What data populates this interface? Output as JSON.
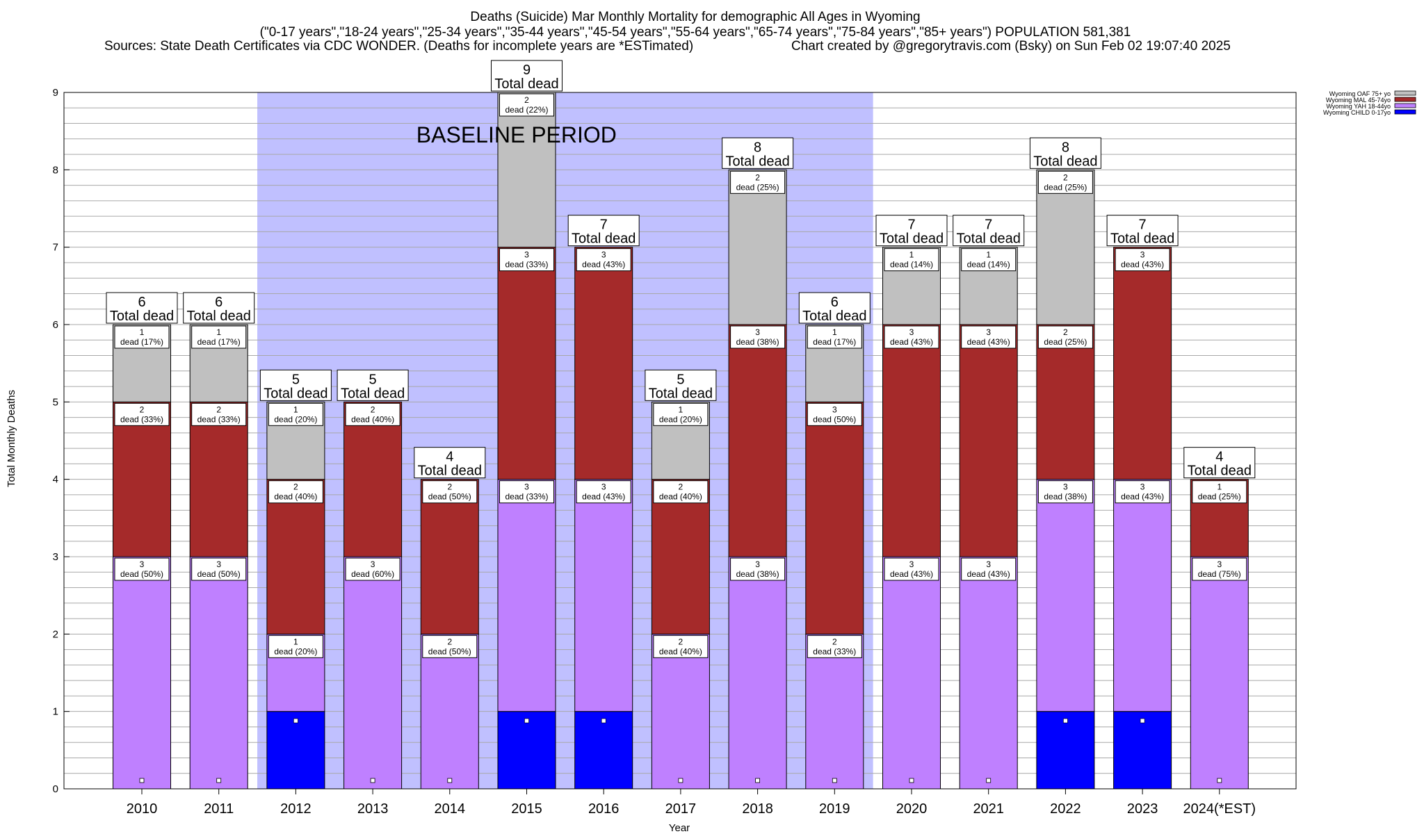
{
  "chart_data": {
    "type": "bar",
    "title": "Deaths (Suicide) Mar Monthly Mortality for demographic All Ages in Wyoming",
    "subtitle": "(\"0-17 years\",\"18-24 years\",\"25-34 years\",\"35-44 years\",\"45-54 years\",\"55-64 years\",\"65-74 years\",\"75-84 years\",\"85+ years\") POPULATION 581,381",
    "source": "Sources: State Death Certificates via CDC WONDER. (Deaths for incomplete years are *ESTimated)",
    "credit": "Chart created by @gregorytravis.com (Bsky) on Sun Feb 02 19:07:40 2025",
    "xlabel": "Year",
    "ylabel": "Total Monthly Deaths",
    "ylim": [
      0,
      9
    ],
    "yticks": [
      "0",
      "1",
      "2",
      "3",
      "4",
      "5",
      "6",
      "7",
      "8",
      "9"
    ],
    "grid": true,
    "stacked": true,
    "legend_position": "top-right",
    "categories": [
      "2010",
      "2011",
      "2012",
      "2013",
      "2014",
      "2015",
      "2016",
      "2017",
      "2018",
      "2019",
      "2020",
      "2021",
      "2022",
      "2023",
      "2024(*EST)"
    ],
    "totals": [
      6,
      6,
      5,
      5,
      4,
      9,
      7,
      5,
      8,
      6,
      7,
      7,
      8,
      7,
      4
    ],
    "total_label": "Total dead",
    "series": [
      {
        "name": "Wyoming CHILD 0-17yo",
        "color": "#0000ff",
        "values": [
          0,
          0,
          1,
          0,
          0,
          1,
          1,
          0,
          0,
          0,
          0,
          0,
          1,
          1,
          0
        ],
        "labels": [
          "",
          "",
          "",
          "",
          "",
          "",
          "",
          "",
          "",
          "",
          "",
          "",
          "",
          "",
          ""
        ]
      },
      {
        "name": "Wyoming YAH 18-44yo",
        "color": "#bf80ff",
        "values": [
          3,
          3,
          1,
          3,
          2,
          3,
          3,
          2,
          3,
          2,
          3,
          3,
          3,
          3,
          3
        ],
        "labels": [
          "dead (50%)",
          "dead (50%)",
          "dead (20%)",
          "dead (60%)",
          "dead (50%)",
          "dead (33%)",
          "dead (43%)",
          "dead (40%)",
          "dead (38%)",
          "dead (33%)",
          "dead (43%)",
          "dead (43%)",
          "dead (38%)",
          "dead (43%)",
          "dead (75%)"
        ]
      },
      {
        "name": "Wyoming MAL 45-74yo",
        "color": "#a52a2a",
        "values": [
          2,
          2,
          2,
          2,
          2,
          3,
          3,
          2,
          3,
          3,
          3,
          3,
          2,
          3,
          1
        ],
        "labels": [
          "dead (33%)",
          "dead (33%)",
          "dead (40%)",
          "dead (40%)",
          "dead (50%)",
          "dead (33%)",
          "dead (43%)",
          "dead (40%)",
          "dead (38%)",
          "dead (50%)",
          "dead (43%)",
          "dead (43%)",
          "dead (25%)",
          "dead (43%)",
          "dead (25%)"
        ]
      },
      {
        "name": "Wyoming OAF 75+ yo",
        "color": "#c0c0c0",
        "values": [
          1,
          1,
          1,
          0,
          0,
          2,
          0,
          1,
          2,
          1,
          1,
          1,
          2,
          0,
          0
        ],
        "labels": [
          "dead (17%)",
          "dead (17%)",
          "dead (20%)",
          "",
          "",
          "dead (22%)",
          "",
          "dead (20%)",
          "dead (25%)",
          "dead (17%)",
          "dead (14%)",
          "dead (14%)",
          "dead (25%)",
          "",
          ""
        ]
      }
    ],
    "annotations": [
      {
        "text": "BASELINE PERIOD",
        "from_category": "2012",
        "to_category": "2019",
        "color": "#c0c0ff"
      }
    ]
  }
}
